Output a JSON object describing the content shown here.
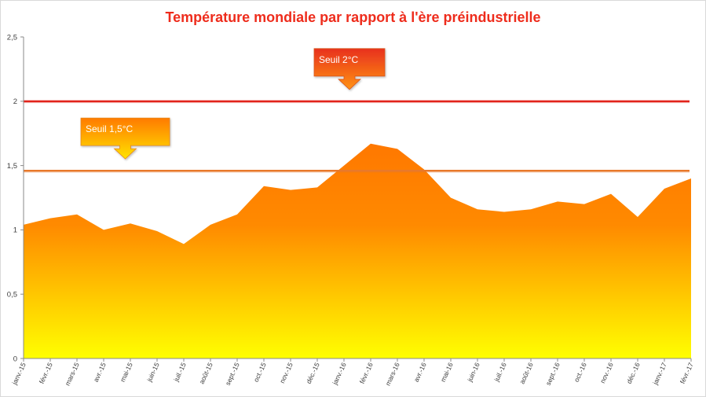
{
  "chart_data": {
    "type": "area",
    "title": "Température mondiale par rapport à l'ère préindustrielle",
    "categories": [
      "janv.-15",
      "févr.-15",
      "mars-15",
      "avr.-15",
      "mai-15",
      "juin-15",
      "juil.-15",
      "août-15",
      "sept.-15",
      "oct.-15",
      "nov.-15",
      "déc.-15",
      "janv.-16",
      "févr.-16",
      "mars-16",
      "avr.-16",
      "mai-16",
      "juin-16",
      "juil.-16",
      "août-16",
      "sept.-16",
      "oct.-16",
      "nov.-16",
      "déc.-16",
      "janv.-17",
      "févr.-17"
    ],
    "series": [
      {
        "values": [
          1.04,
          1.09,
          1.12,
          1.0,
          1.05,
          0.99,
          0.89,
          1.04,
          1.12,
          1.34,
          1.31,
          1.33,
          1.5,
          1.67,
          1.63,
          1.47,
          1.25,
          1.16,
          1.14,
          1.16,
          1.22,
          1.2,
          1.28,
          1.1,
          1.32,
          1.4
        ],
        "color": "#ff7800"
      }
    ],
    "ylim": [
      0,
      2.5
    ],
    "yticks": [
      {
        "value": 0,
        "label": "0"
      },
      {
        "value": 0.5,
        "label": "0,5"
      },
      {
        "value": 1,
        "label": "1"
      },
      {
        "value": 1.5,
        "label": "1,5"
      },
      {
        "value": 2,
        "label": "2"
      },
      {
        "value": 2.5,
        "label": "2,5"
      }
    ],
    "grid": false,
    "legend": "none",
    "thresholds": [
      {
        "label": "Seuil 2°C",
        "value": 2.0,
        "color": "#e2241b",
        "fill_top": "#e8301e",
        "fill_bottom": "#ff9312",
        "border": "#d8561f"
      },
      {
        "label": "Seuil 1,5°C",
        "value": 1.46,
        "color": "#e8792b",
        "fill_top": "#ff7a00",
        "fill_bottom": "#ffe300",
        "border": "#e6861c"
      }
    ]
  },
  "colors": {
    "title": "#ee2c1c",
    "area_top": "#ff7800",
    "area_mid": "#ff8a00",
    "area_bottom": "#ffff00"
  }
}
